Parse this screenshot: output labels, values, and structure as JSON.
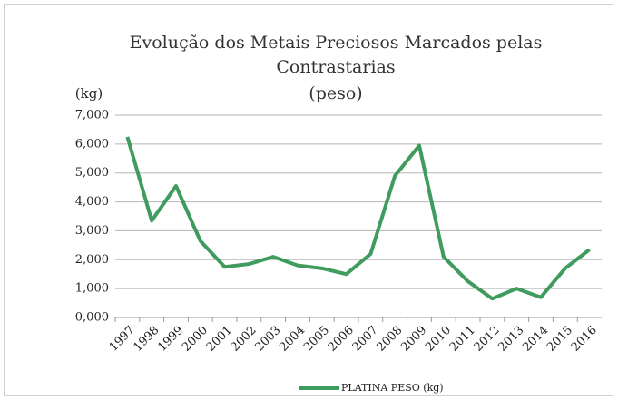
{
  "chart_data": {
    "type": "line",
    "title": "Evolução dos Metais Preciosos Marcados pelas Contrastarias",
    "subtitle": "(peso)",
    "y_label": "(kg)",
    "categories": [
      "1997",
      "1998",
      "1999",
      "2000",
      "2001",
      "2002",
      "2003",
      "2004",
      "2005",
      "2006",
      "2007",
      "2008",
      "2009",
      "2010",
      "2011",
      "2012",
      "2013",
      "2014",
      "2015",
      "2016"
    ],
    "series": [
      {
        "name": "PLATINA PESO (kg)",
        "color": "#3f9b5e",
        "values": [
          6250,
          3350,
          4550,
          2650,
          1750,
          1850,
          2100,
          1800,
          1700,
          1500,
          2200,
          4900,
          5950,
          2100,
          1250,
          650,
          1000,
          700,
          1700,
          2350
        ]
      }
    ],
    "ylim": [
      0,
      7000
    ],
    "yticks": [
      {
        "value": 0,
        "label": "0,000"
      },
      {
        "value": 1000,
        "label": "1,000"
      },
      {
        "value": 2000,
        "label": "2,000"
      },
      {
        "value": 3000,
        "label": "3,000"
      },
      {
        "value": 4000,
        "label": "4,000"
      },
      {
        "value": 5000,
        "label": "5,000"
      },
      {
        "value": 6000,
        "label": "6,000"
      },
      {
        "value": 7000,
        "label": "7,000"
      }
    ],
    "grid": true,
    "legend": "bottom"
  }
}
